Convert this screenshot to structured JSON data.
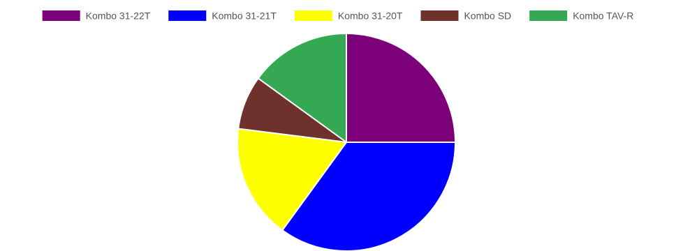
{
  "chart_data": {
    "type": "pie",
    "title": "",
    "legend_position": "top",
    "slice_order": "clockwise-from-top",
    "border_color": "#ffffff",
    "series": [
      {
        "name": "Kombo 31-22T",
        "value": 25,
        "color": "#7b0079"
      },
      {
        "name": "Kombo 31-21T",
        "value": 35,
        "color": "#0000ff"
      },
      {
        "name": "Kombo 31-20T",
        "value": 17,
        "color": "#ffff00"
      },
      {
        "name": "Kombo SD",
        "value": 8,
        "color": "#6e312b"
      },
      {
        "name": "Kombo TAV-R",
        "value": 15,
        "color": "#34a853"
      }
    ]
  }
}
